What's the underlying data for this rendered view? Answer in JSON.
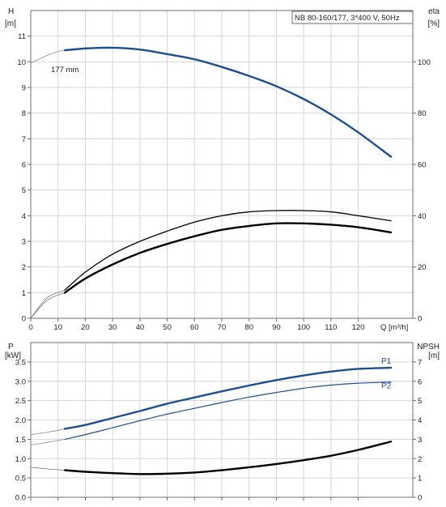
{
  "chart_data": [
    {
      "type": "line",
      "legend_box": "NB 80-160/177, 3*400 V, 50Hz",
      "xlabel": "Q [m³/h]",
      "xlim": [
        0,
        140
      ],
      "x_ticks": [
        0,
        10,
        20,
        30,
        40,
        50,
        60,
        70,
        80,
        90,
        100,
        110,
        120
      ],
      "ylabel_left_name": "H",
      "ylabel_left_unit": "[m]",
      "ylim_left": [
        0,
        12
      ],
      "y_ticks_left": [
        0,
        1,
        2,
        3,
        4,
        5,
        6,
        7,
        8,
        9,
        10,
        11
      ],
      "ylabel_right_name": "eta",
      "ylabel_right_unit": "[%]",
      "ylim_right": [
        0,
        120
      ],
      "y_ticks_right": [
        0,
        20,
        40,
        60,
        80,
        100
      ],
      "grid": true,
      "series": [
        {
          "label": "177 mm",
          "axis": "left",
          "color": "#1f4e8c",
          "x": [
            0,
            5,
            10,
            12.5,
            20,
            30,
            40,
            50,
            60,
            70,
            80,
            90,
            100,
            110,
            120,
            132
          ],
          "y": [
            9.95,
            10.2,
            10.4,
            10.45,
            10.52,
            10.55,
            10.48,
            10.3,
            10.1,
            9.8,
            9.45,
            9.05,
            8.55,
            7.95,
            7.25,
            6.3
          ]
        },
        {
          "axis": "right",
          "color": "#000000",
          "x": [
            0,
            6,
            12.5,
            20,
            30,
            40,
            50,
            60,
            70,
            80,
            90,
            100,
            110,
            120,
            132
          ],
          "y": [
            0,
            8,
            11,
            18,
            25,
            30,
            34,
            37.5,
            40,
            41.5,
            42,
            42,
            41.5,
            40,
            38
          ]
        },
        {
          "axis": "right",
          "color": "#000000",
          "x": [
            0,
            6,
            12.5,
            20,
            30,
            40,
            50,
            60,
            70,
            80,
            90,
            100,
            110,
            120,
            132
          ],
          "y": [
            0,
            7,
            10,
            15.5,
            21,
            25.5,
            29,
            32,
            34.5,
            36,
            37,
            37,
            36.5,
            35.5,
            33.5
          ]
        }
      ]
    },
    {
      "type": "line",
      "xlim": [
        0,
        140
      ],
      "x_ticks": [
        0,
        10,
        20,
        30,
        40,
        50,
        60,
        70,
        80,
        90,
        100,
        110,
        120
      ],
      "ylabel_left_name": "P",
      "ylabel_left_unit": "[kW]",
      "ylim_left": [
        0,
        4
      ],
      "y_ticks_left": [
        "0.0",
        "0.5",
        "1.0",
        "1.5",
        "2.0",
        "2.5",
        "3.0",
        "3.5"
      ],
      "ylabel_right_name": "NPSH",
      "ylabel_right_unit": "[m]",
      "ylim_right": [
        0,
        8
      ],
      "y_ticks_right": [
        0,
        1,
        2,
        3,
        4,
        5,
        6,
        7
      ],
      "grid": true,
      "series": [
        {
          "name": "P1",
          "axis": "left",
          "color": "#1f4e8c",
          "x": [
            0,
            6,
            12.5,
            20,
            30,
            40,
            50,
            60,
            70,
            80,
            90,
            100,
            110,
            120,
            132
          ],
          "y": [
            1.62,
            1.68,
            1.77,
            1.87,
            2.05,
            2.23,
            2.42,
            2.58,
            2.74,
            2.89,
            3.03,
            3.15,
            3.25,
            3.32,
            3.35
          ]
        },
        {
          "name": "P2",
          "axis": "left",
          "color": "#1f4e8c",
          "x": [
            0,
            6,
            12.5,
            20,
            30,
            40,
            50,
            60,
            70,
            80,
            90,
            100,
            110,
            120,
            132
          ],
          "y": [
            1.35,
            1.42,
            1.5,
            1.62,
            1.8,
            1.98,
            2.15,
            2.3,
            2.45,
            2.59,
            2.71,
            2.82,
            2.9,
            2.95,
            2.98
          ]
        },
        {
          "axis": "right",
          "color": "#000000",
          "x": [
            0,
            6,
            12.5,
            20,
            30,
            40,
            50,
            60,
            70,
            80,
            90,
            100,
            110,
            120,
            132
          ],
          "y": [
            1.55,
            1.47,
            1.4,
            1.32,
            1.25,
            1.2,
            1.22,
            1.28,
            1.4,
            1.55,
            1.72,
            1.92,
            2.15,
            2.45,
            2.88
          ]
        }
      ]
    }
  ]
}
